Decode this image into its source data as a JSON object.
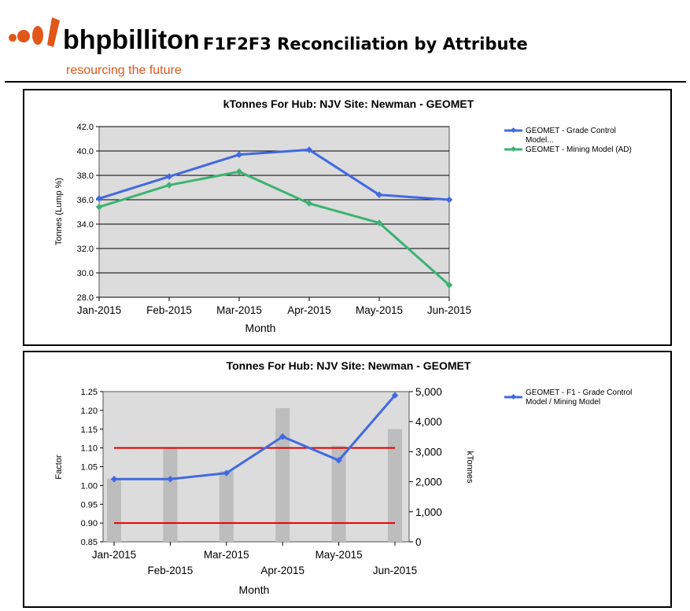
{
  "header": {
    "logo_text": "bhpbilliton",
    "logo_tagline": "resourcing the future",
    "report_title": "F1F2F3 Reconciliation by Attribute"
  },
  "colors": {
    "brand_orange": "#E2561A",
    "series_blue": "#4169E1",
    "series_green": "#3CB371",
    "threshold_red": "#E00000",
    "bar_grey": "#BDBDBD",
    "plot_bg": "#DCDCDC"
  },
  "chart_data": [
    {
      "type": "line",
      "title": "kTonnes For Hub: NJV  Site: Newman   - GEOMET",
      "xlabel": "Month",
      "ylabel": "Tonnes (Lump %)",
      "categories": [
        "Jan-2015",
        "Feb-2015",
        "Mar-2015",
        "Apr-2015",
        "May-2015",
        "Jun-2015"
      ],
      "ylim": [
        28.0,
        42.0
      ],
      "yticks": [
        "28.0",
        "30.0",
        "32.0",
        "34.0",
        "36.0",
        "38.0",
        "40.0",
        "42.0"
      ],
      "grid": true,
      "legend_position": "right",
      "series": [
        {
          "name": "GEOMET - Grade Control Model...",
          "color": "#4169E1",
          "values": [
            36.1,
            37.9,
            39.7,
            40.1,
            36.4,
            36.0
          ]
        },
        {
          "name": "GEOMET - Mining Model (AD)",
          "color": "#3CB371",
          "values": [
            35.4,
            37.2,
            38.3,
            35.7,
            34.1,
            29.0
          ]
        }
      ]
    },
    {
      "type": "bar",
      "title": "Tonnes For Hub: NJV  Site: Newman   - GEOMET",
      "xlabel": "Month",
      "ylabel": "Factor",
      "y2label": "kTonnes",
      "categories": [
        "Jan-2015",
        "Feb-2015",
        "Mar-2015",
        "Apr-2015",
        "May-2015",
        "Jun-2015"
      ],
      "ylim": [
        0.85,
        1.25
      ],
      "yticks": [
        "0.85",
        "0.90",
        "0.95",
        "1.00",
        "1.05",
        "1.10",
        "1.15",
        "1.20",
        "1.25"
      ],
      "y2lim": [
        0,
        5000
      ],
      "y2ticks": [
        "0",
        "1,000",
        "2,000",
        "3,000",
        "4,000",
        "5,000"
      ],
      "grid": false,
      "legend_position": "right",
      "bars": {
        "axis": "right",
        "color": "#BDBDBD",
        "values": [
          2100,
          3150,
          2350,
          4450,
          3200,
          3750
        ]
      },
      "series": [
        {
          "name": "GEOMET - F1 - Grade Control Model / Mining Model",
          "color": "#4169E1",
          "axis": "left",
          "values": [
            1.017,
            1.017,
            1.033,
            1.13,
            1.067,
            1.24
          ]
        }
      ],
      "reference_lines": [
        {
          "value": 1.1,
          "color": "#E00000"
        },
        {
          "value": 0.9,
          "color": "#E00000"
        }
      ]
    }
  ]
}
